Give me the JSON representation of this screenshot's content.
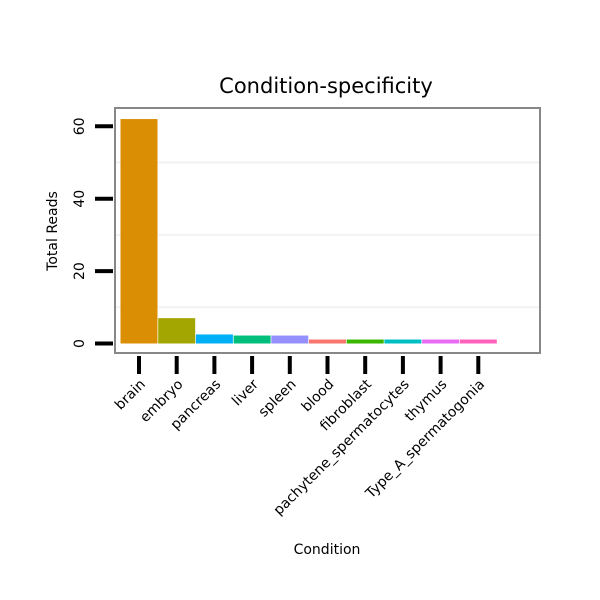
{
  "chart_data": {
    "type": "bar",
    "title": "Condition-specificity",
    "xlabel": "Condition",
    "ylabel": "Total Reads",
    "categories": [
      "brain",
      "embryo",
      "pancreas",
      "liver",
      "spleen",
      "blood",
      "fibroblast",
      "pachytene_spermatocytes",
      "thymus",
      "Type_A_spermatogonia"
    ],
    "values": [
      62,
      7,
      2.5,
      2.2,
      2.2,
      1.1,
      1.1,
      1.1,
      1.1,
      1.1
    ],
    "colors": [
      "#D98E04",
      "#A3A500",
      "#00B0F6",
      "#00BF7D",
      "#9590FF",
      "#F8766D",
      "#39B600",
      "#00BFC4",
      "#E76BF3",
      "#FF62BC"
    ],
    "yticks": [
      0,
      20,
      40,
      60
    ],
    "ylim": [
      -2.5,
      65
    ],
    "grid": true,
    "legend": "none"
  }
}
